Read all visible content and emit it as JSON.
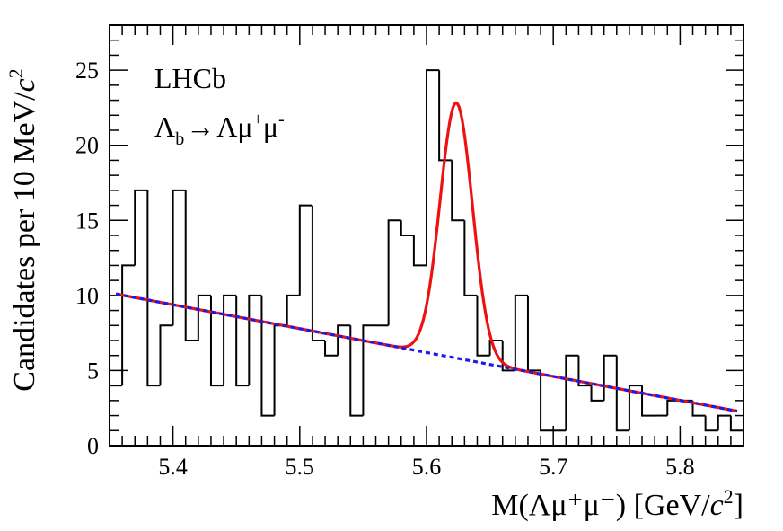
{
  "chart_data": {
    "type": "histogram",
    "title": "",
    "xlabel": "M(Λμ⁺μ⁻) [GeV/c²]",
    "ylabel": "Candidates per 10 MeV/c²",
    "xlim": [
      5.35,
      5.85
    ],
    "ylim": [
      0,
      28
    ],
    "bin_width": 0.01,
    "x_ticks": [
      5.4,
      5.5,
      5.6,
      5.7,
      5.8
    ],
    "x_tick_labels": [
      "5.4",
      "5.5",
      "5.6",
      "5.7",
      "5.8"
    ],
    "y_ticks": [
      0,
      5,
      10,
      15,
      20,
      25
    ],
    "y_tick_labels": [
      "0",
      "5",
      "10",
      "15",
      "20",
      "25"
    ],
    "bin_edges": [
      5.35,
      5.36,
      5.37,
      5.38,
      5.39,
      5.4,
      5.41,
      5.42,
      5.43,
      5.44,
      5.45,
      5.46,
      5.47,
      5.48,
      5.49,
      5.5,
      5.51,
      5.52,
      5.53,
      5.54,
      5.55,
      5.56,
      5.57,
      5.58,
      5.59,
      5.6,
      5.61,
      5.62,
      5.63,
      5.64,
      5.65,
      5.66,
      5.67,
      5.68,
      5.69,
      5.7,
      5.71,
      5.72,
      5.73,
      5.74,
      5.75,
      5.76,
      5.77,
      5.78,
      5.79,
      5.8,
      5.81,
      5.82,
      5.83,
      5.84,
      5.85
    ],
    "counts": [
      4,
      12,
      17,
      4,
      8,
      17,
      7,
      10,
      4,
      10,
      4,
      10,
      2,
      8,
      10,
      16,
      7,
      6,
      8,
      2,
      8,
      8,
      15,
      14,
      12,
      25,
      19,
      15,
      10,
      6,
      7,
      5,
      10,
      5,
      1,
      1,
      6,
      4,
      3,
      6,
      1,
      4,
      2,
      2,
      3,
      3,
      2,
      1,
      2,
      1
    ],
    "series": [
      {
        "name": "data",
        "style": "histogram",
        "color": "#000000"
      },
      {
        "name": "total fit",
        "style": "line",
        "color": "#ee1111",
        "signal": {
          "mean": 5.6235,
          "sigma": 0.0128,
          "amplitude": 17.0
        }
      },
      {
        "name": "background",
        "style": "dashed",
        "color": "#1a1aee",
        "points": [
          [
            5.355,
            10.1
          ],
          [
            5.845,
            2.3
          ]
        ]
      }
    ],
    "annotations": [
      {
        "text": "LHCb",
        "position": "top-left"
      },
      {
        "main": "Λ",
        "sub": "b",
        "arrow": "→",
        "after": "Λμ",
        "sup1": "+",
        "mu2": "μ",
        "sup2": "-",
        "position": "top-left"
      }
    ]
  }
}
